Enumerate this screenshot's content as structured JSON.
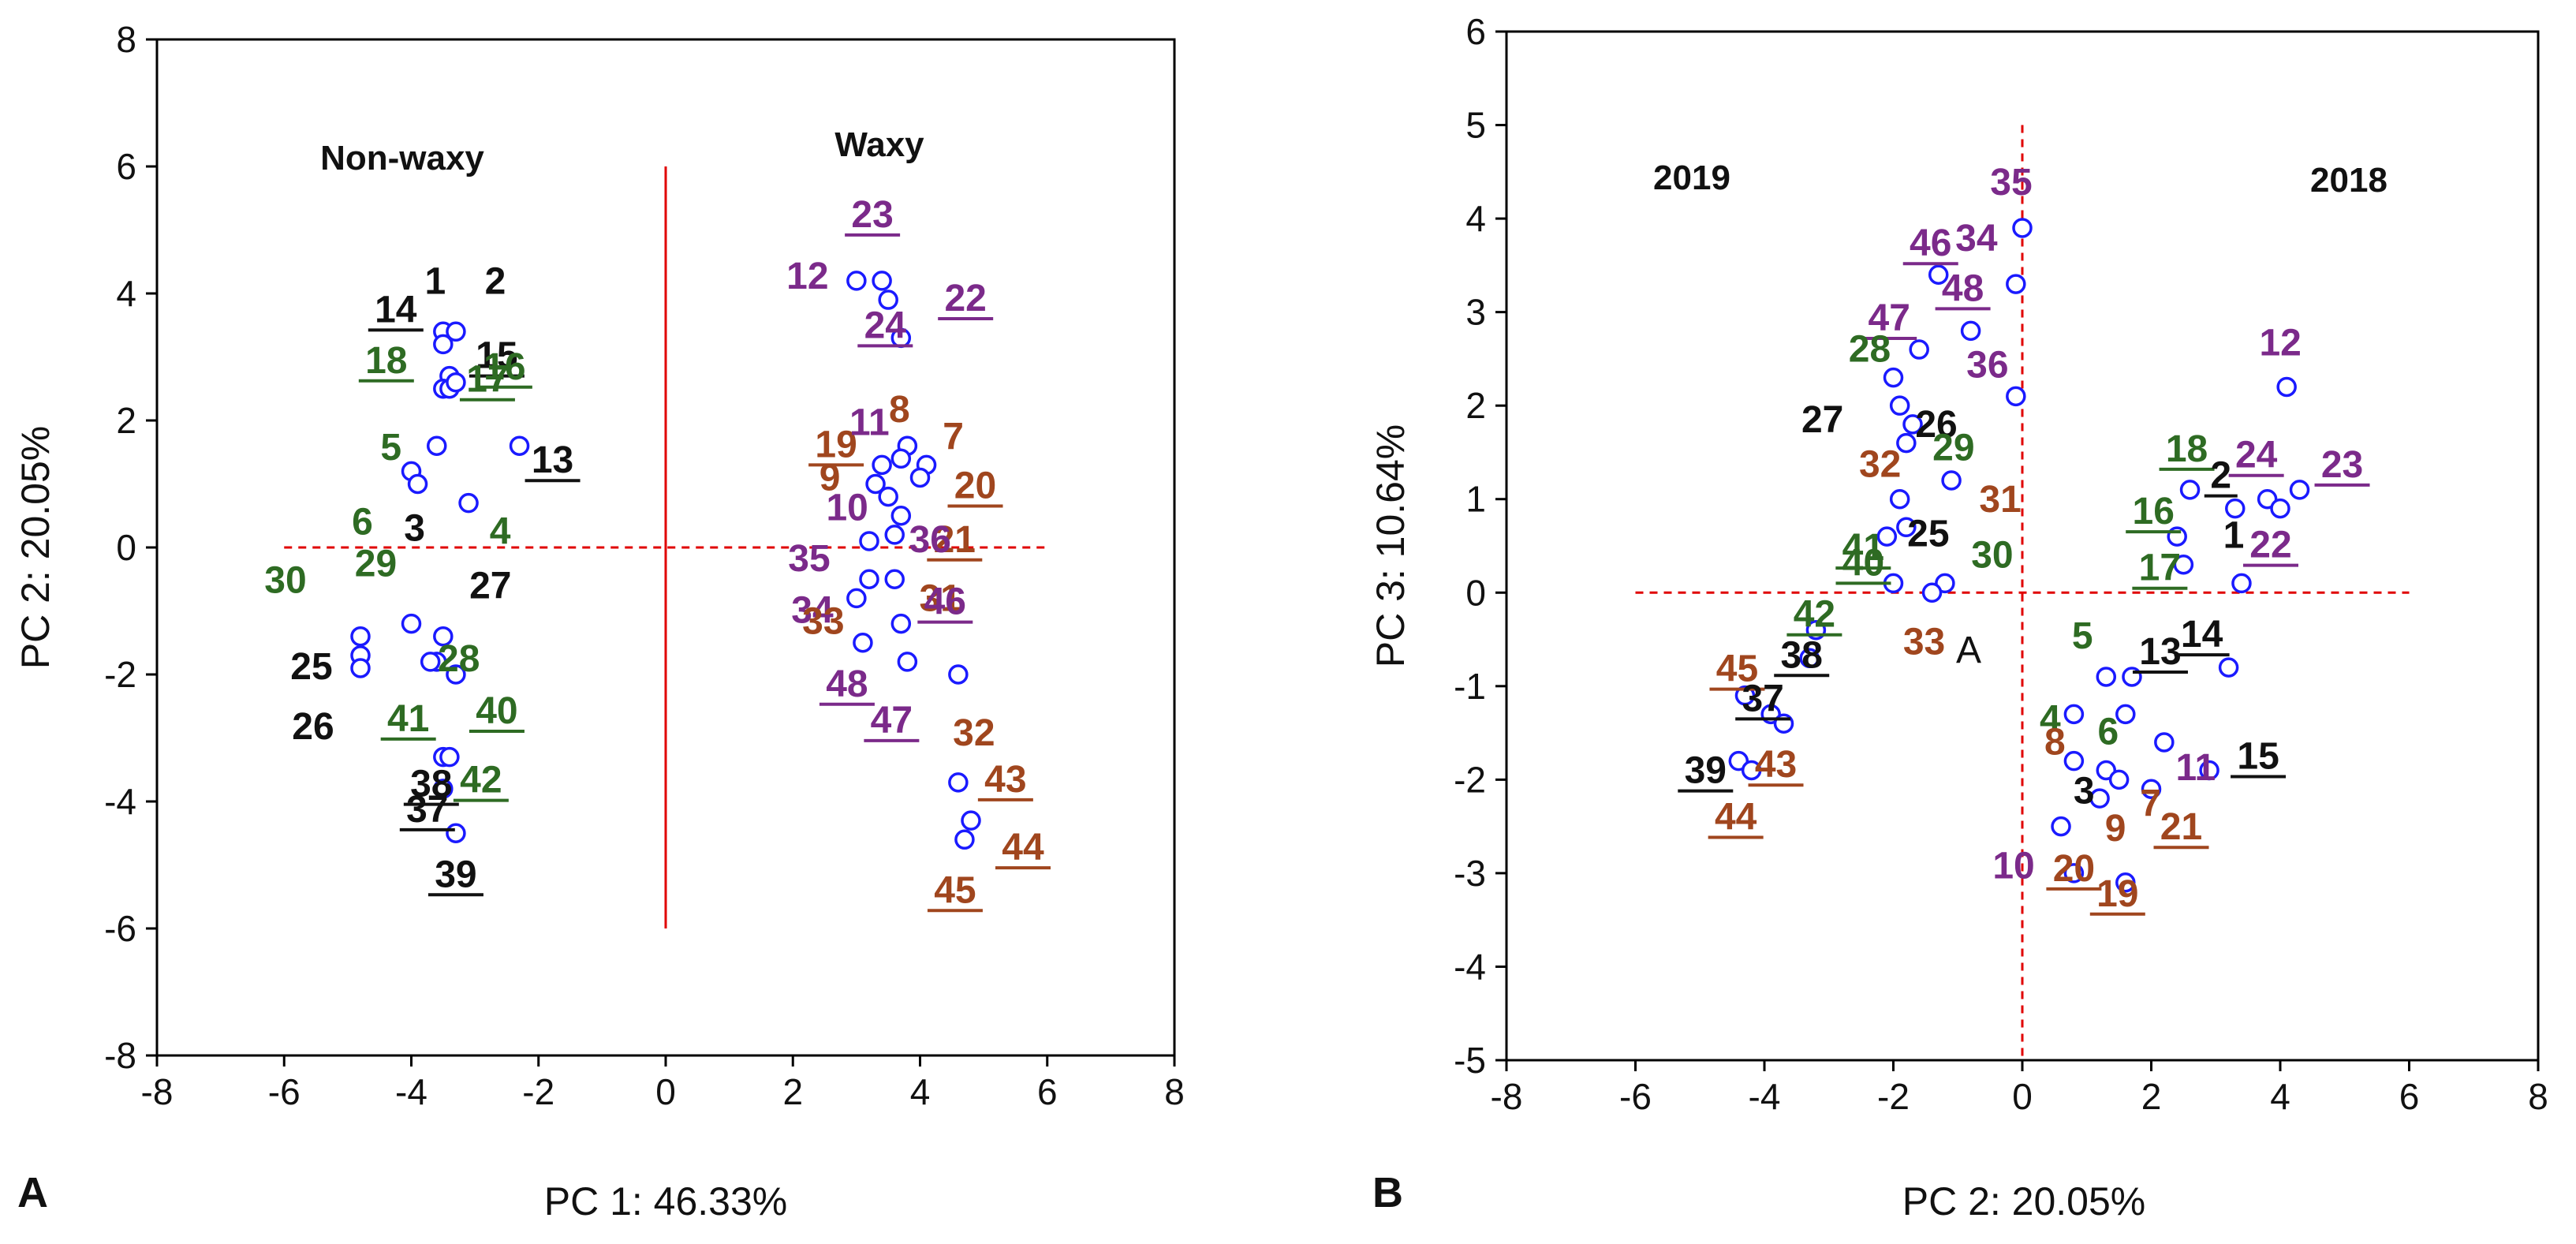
{
  "chart_data": [
    {
      "panel": "A",
      "type": "scatter",
      "panel_label": "A",
      "xlabel": "PC 1: 46.33%",
      "ylabel": "PC 2: 20.05%",
      "xlim": [
        -8,
        8
      ],
      "ylim": [
        -8,
        8
      ],
      "xticks": [
        -8,
        -6,
        -4,
        -2,
        0,
        2,
        4,
        6,
        8
      ],
      "yticks": [
        -8,
        -6,
        -4,
        -2,
        0,
        2,
        4,
        6,
        8
      ],
      "group_labels": [
        "Non-waxy",
        "Waxy"
      ],
      "points": [
        {
          "id": "1",
          "x": -3.5,
          "y": 3.4
        },
        {
          "id": "14",
          "x": -3.5,
          "y": 3.2
        },
        {
          "id": "2",
          "x": -3.3,
          "y": 3.4
        },
        {
          "id": "15",
          "x": -3.4,
          "y": 2.7
        },
        {
          "id": "18",
          "x": -3.5,
          "y": 2.5
        },
        {
          "id": "16",
          "x": -3.4,
          "y": 2.5
        },
        {
          "id": "17",
          "x": -3.3,
          "y": 2.6
        },
        {
          "id": "5",
          "x": -3.6,
          "y": 1.6
        },
        {
          "id": "13",
          "x": -2.3,
          "y": 1.6
        },
        {
          "id": "6",
          "x": -4.0,
          "y": 1.2
        },
        {
          "id": "3",
          "x": -3.9,
          "y": 1.0
        },
        {
          "id": "4",
          "x": -3.1,
          "y": 0.7
        },
        {
          "id": "30",
          "x": -4.8,
          "y": -1.4
        },
        {
          "id": "29",
          "x": -4.0,
          "y": -1.2
        },
        {
          "id": "27",
          "x": -3.5,
          "y": -1.4
        },
        {
          "id": "25",
          "x": -4.8,
          "y": -1.7
        },
        {
          "id": "26",
          "x": -4.8,
          "y": -1.9
        },
        {
          "id": "28",
          "x": -3.6,
          "y": -1.8
        },
        {
          "id": "41",
          "x": -3.7,
          "y": -1.8
        },
        {
          "id": "40",
          "x": -3.3,
          "y": -2.0
        },
        {
          "id": "38",
          "x": -3.5,
          "y": -3.3
        },
        {
          "id": "42",
          "x": -3.4,
          "y": -3.3
        },
        {
          "id": "37",
          "x": -3.5,
          "y": -3.8
        },
        {
          "id": "39",
          "x": -3.3,
          "y": -4.5
        },
        {
          "id": "12",
          "x": 3.0,
          "y": 4.2
        },
        {
          "id": "23",
          "x": 3.4,
          "y": 4.2
        },
        {
          "id": "22",
          "x": 3.5,
          "y": 3.9
        },
        {
          "id": "24",
          "x": 3.7,
          "y": 3.3
        },
        {
          "id": "8",
          "x": 3.8,
          "y": 1.6
        },
        {
          "id": "7",
          "x": 4.1,
          "y": 1.3
        },
        {
          "id": "19",
          "x": 3.4,
          "y": 1.3
        },
        {
          "id": "11",
          "x": 3.7,
          "y": 1.4
        },
        {
          "id": "9",
          "x": 3.3,
          "y": 1.0
        },
        {
          "id": "20",
          "x": 4.0,
          "y": 1.1
        },
        {
          "id": "10",
          "x": 3.5,
          "y": 0.8
        },
        {
          "id": "21",
          "x": 3.7,
          "y": 0.5
        },
        {
          "id": "35",
          "x": 3.2,
          "y": 0.1
        },
        {
          "id": "36",
          "x": 3.6,
          "y": 0.2
        },
        {
          "id": "34",
          "x": 3.2,
          "y": -0.5
        },
        {
          "id": "33",
          "x": 3.0,
          "y": -0.8
        },
        {
          "id": "31",
          "x": 3.6,
          "y": -0.5
        },
        {
          "id": "48",
          "x": 3.1,
          "y": -1.5
        },
        {
          "id": "46",
          "x": 3.7,
          "y": -1.2
        },
        {
          "id": "47",
          "x": 3.8,
          "y": -1.8
        },
        {
          "id": "32",
          "x": 4.6,
          "y": -2.0
        },
        {
          "id": "43",
          "x": 4.6,
          "y": -3.7
        },
        {
          "id": "44",
          "x": 4.8,
          "y": -4.3
        },
        {
          "id": "45",
          "x": 4.7,
          "y": -4.6
        }
      ]
    },
    {
      "panel": "B",
      "type": "scatter",
      "panel_label": "B",
      "xlabel": "PC 2: 20.05%",
      "ylabel": "PC 3: 10.64%",
      "xlim": [
        -8,
        8
      ],
      "ylim": [
        -5,
        6
      ],
      "xticks": [
        -8,
        -6,
        -4,
        -2,
        0,
        2,
        4,
        6,
        8
      ],
      "yticks": [
        -5,
        -4,
        -3,
        -2,
        -1,
        0,
        1,
        2,
        3,
        4,
        5,
        6
      ],
      "group_labels": [
        "2019",
        "2018"
      ],
      "inner_label": "A",
      "points": [
        {
          "id": "35",
          "x": 0.0,
          "y": 3.9
        },
        {
          "id": "46",
          "x": -1.3,
          "y": 3.4
        },
        {
          "id": "34",
          "x": -0.1,
          "y": 3.3
        },
        {
          "id": "48",
          "x": -0.8,
          "y": 2.8
        },
        {
          "id": "47",
          "x": -1.6,
          "y": 2.6
        },
        {
          "id": "36",
          "x": -0.1,
          "y": 2.1
        },
        {
          "id": "28",
          "x": -2.0,
          "y": 2.3
        },
        {
          "id": "27",
          "x": -1.9,
          "y": 2.0
        },
        {
          "id": "26",
          "x": -1.7,
          "y": 1.8
        },
        {
          "id": "29",
          "x": -1.8,
          "y": 1.6
        },
        {
          "id": "32",
          "x": -1.9,
          "y": 1.0
        },
        {
          "id": "31",
          "x": -1.1,
          "y": 1.2
        },
        {
          "id": "41",
          "x": -2.1,
          "y": 0.6
        },
        {
          "id": "25",
          "x": -1.8,
          "y": 0.7
        },
        {
          "id": "40",
          "x": -2.0,
          "y": 0.1
        },
        {
          "id": "30",
          "x": -1.2,
          "y": 0.1
        },
        {
          "id": "33",
          "x": -1.4,
          "y": 0.0
        },
        {
          "id": "42",
          "x": -3.2,
          "y": -0.4
        },
        {
          "id": "38",
          "x": -3.3,
          "y": -0.7
        },
        {
          "id": "45",
          "x": -4.3,
          "y": -1.1
        },
        {
          "id": "37",
          "x": -3.9,
          "y": -1.3
        },
        {
          "id": "43",
          "x": -3.7,
          "y": -1.4
        },
        {
          "id": "39",
          "x": -4.4,
          "y": -1.8
        },
        {
          "id": "44",
          "x": -4.2,
          "y": -1.9
        },
        {
          "id": "12",
          "x": 4.1,
          "y": 2.2
        },
        {
          "id": "18",
          "x": 2.6,
          "y": 1.1
        },
        {
          "id": "24",
          "x": 3.8,
          "y": 1.0
        },
        {
          "id": "23",
          "x": 4.3,
          "y": 1.1
        },
        {
          "id": "2",
          "x": 3.3,
          "y": 0.9
        },
        {
          "id": "22",
          "x": 4.0,
          "y": 0.9
        },
        {
          "id": "16",
          "x": 2.4,
          "y": 0.6
        },
        {
          "id": "17",
          "x": 2.5,
          "y": 0.3
        },
        {
          "id": "1",
          "x": 3.4,
          "y": 0.1
        },
        {
          "id": "13",
          "x": 1.7,
          "y": -0.9
        },
        {
          "id": "14",
          "x": 3.2,
          "y": -0.8
        },
        {
          "id": "5",
          "x": 1.3,
          "y": -0.9
        },
        {
          "id": "4",
          "x": 0.8,
          "y": -1.3
        },
        {
          "id": "6",
          "x": 1.6,
          "y": -1.3
        },
        {
          "id": "11",
          "x": 2.2,
          "y": -1.6
        },
        {
          "id": "8",
          "x": 0.8,
          "y": -1.8
        },
        {
          "id": "3",
          "x": 1.3,
          "y": -1.9
        },
        {
          "id": "7",
          "x": 1.5,
          "y": -2.0
        },
        {
          "id": "15",
          "x": 2.9,
          "y": -1.9
        },
        {
          "id": "9",
          "x": 1.2,
          "y": -2.2
        },
        {
          "id": "21",
          "x": 2.0,
          "y": -2.1
        },
        {
          "id": "10",
          "x": 0.6,
          "y": -2.5
        },
        {
          "id": "20",
          "x": 0.8,
          "y": -3.0
        },
        {
          "id": "19",
          "x": 1.6,
          "y": -3.1
        }
      ]
    }
  ],
  "colors": {
    "marker": "#1a1aff",
    "axis_line": "#e00000",
    "black_label": "#111111",
    "green_label": "#2e6b23",
    "brown_label": "#a0461e",
    "purple_label": "#7b2a8a",
    "frame": "#000000"
  }
}
